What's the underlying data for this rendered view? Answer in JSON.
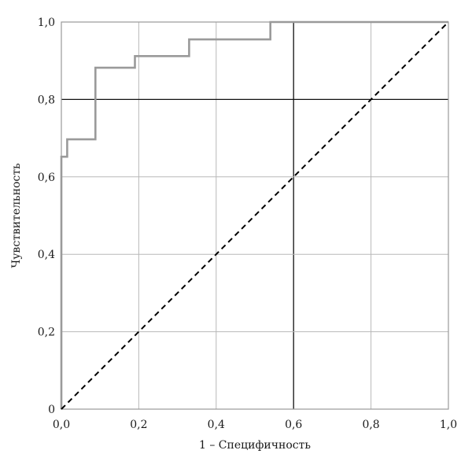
{
  "chart_data": {
    "type": "line",
    "title": "",
    "xlabel": "1 – Специфичность",
    "ylabel": "Чувствительность",
    "xlim": [
      0,
      1
    ],
    "ylim": [
      0,
      1
    ],
    "x_ticks": [
      0,
      0.2,
      0.4,
      0.6,
      0.8,
      1.0
    ],
    "y_ticks": [
      0,
      0.2,
      0.4,
      0.6,
      0.8,
      1.0
    ],
    "x_tick_labels": [
      "0,0",
      "0,2",
      "0,4",
      "0,6",
      "0,8",
      "1,0"
    ],
    "y_tick_labels": [
      "0",
      "0,2",
      "0,4",
      "0,6",
      "0,8",
      "1,0"
    ],
    "grid": true,
    "emphasized_gridlines": {
      "x": [
        0.6
      ],
      "y": [
        0.8
      ]
    },
    "legend": "none",
    "series": [
      {
        "style": "step",
        "color": "#9a9a9a",
        "points": [
          [
            0,
            0
          ],
          [
            0,
            0.652
          ],
          [
            0.015,
            0.652
          ],
          [
            0.015,
            0.697
          ],
          [
            0.088,
            0.697
          ],
          [
            0.088,
            0.882
          ],
          [
            0.19,
            0.882
          ],
          [
            0.19,
            0.912
          ],
          [
            0.33,
            0.912
          ],
          [
            0.33,
            0.955
          ],
          [
            0.54,
            0.955
          ],
          [
            0.54,
            1.0
          ],
          [
            1.0,
            1.0
          ]
        ]
      },
      {
        "style": "dashed",
        "color": "#000000",
        "points": [
          [
            0,
            0
          ],
          [
            1,
            1
          ]
        ]
      }
    ]
  }
}
